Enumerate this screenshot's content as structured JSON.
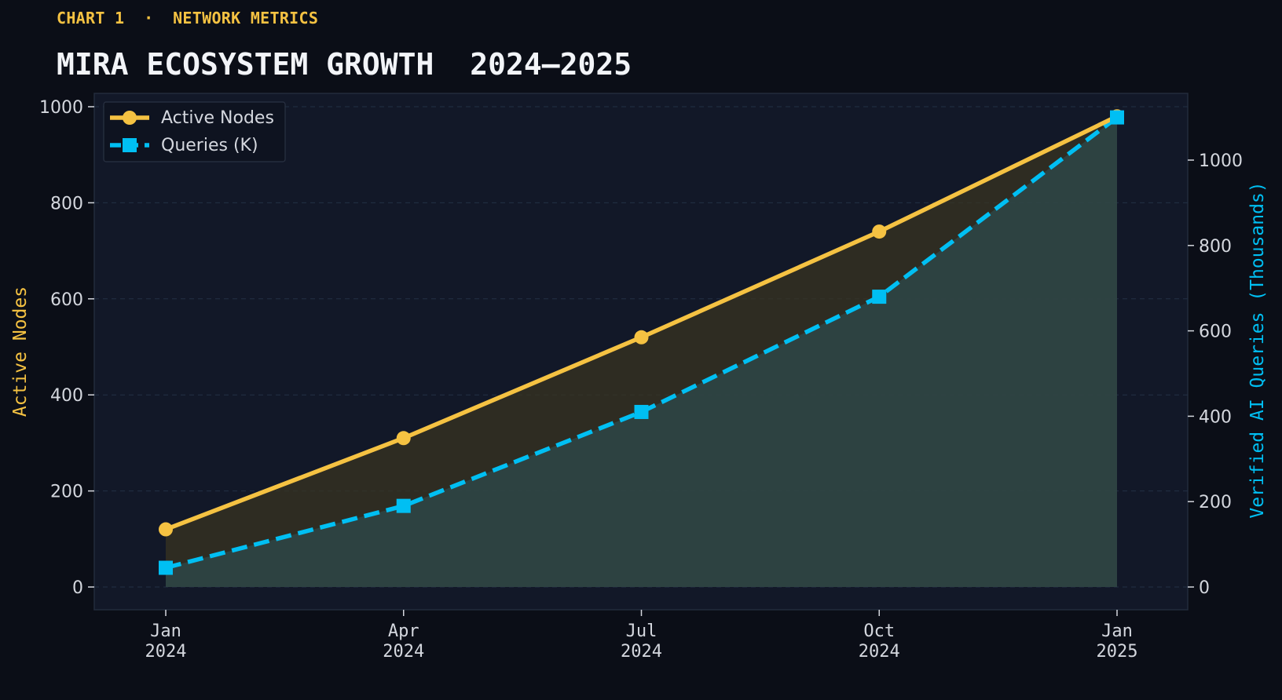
{
  "header": {
    "kicker": "CHART 1  ·  NETWORK METRICS",
    "title": "MIRA ECOSYSTEM GROWTH  2024–2025"
  },
  "colors": {
    "background": "#0b0e17",
    "plot_background": "#121828",
    "nodes": "#f5c242",
    "queries": "#00bff3",
    "text": "#d4d7de"
  },
  "chart_data": {
    "type": "line",
    "categories": [
      "Jan\n2024",
      "Apr\n2024",
      "Jul\n2024",
      "Oct\n2024",
      "Jan\n2025"
    ],
    "series": [
      {
        "name": "Active Nodes",
        "axis": "left",
        "values": [
          120,
          310,
          520,
          740,
          980
        ],
        "marker": "circle",
        "line_style": "solid",
        "fill": true
      },
      {
        "name": "Queries (K)",
        "axis": "right",
        "values": [
          45,
          190,
          410,
          680,
          1100
        ],
        "marker": "square",
        "line_style": "dashed",
        "fill": true
      }
    ],
    "ylabel": "Active Nodes",
    "y2label": "Verified AI Queries (Thousands)",
    "ylim": [
      0,
      1030
    ],
    "y2lim": [
      0,
      1150
    ],
    "yticks": [
      0,
      200,
      400,
      600,
      800,
      1000
    ],
    "y2ticks": [
      0,
      200,
      400,
      600,
      800,
      1000
    ],
    "grid": true,
    "legend_position": "top-left"
  }
}
